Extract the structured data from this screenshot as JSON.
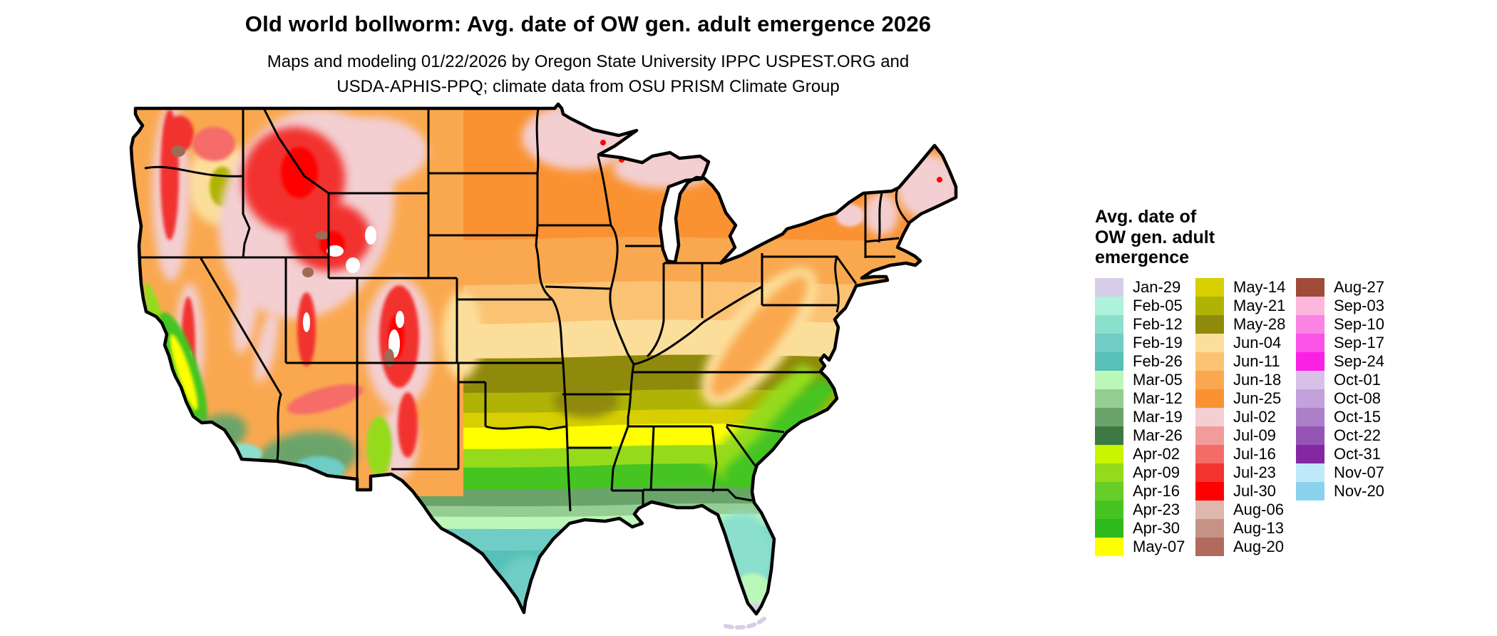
{
  "title": "Old world bollworm: Avg. date of OW gen. adult emergence 2026",
  "subtitle_line1": "Maps and modeling 01/22/2026 by Oregon State University IPPC USPEST.ORG and",
  "subtitle_line2": "USDA-APHIS-PPQ; climate data from OSU PRISM Climate Group",
  "legend": {
    "title_lines": "Avg. date of\nOW gen. adult\nemergence",
    "columns": [
      [
        {
          "label": "Jan-29",
          "color": "#D7CDE8"
        },
        {
          "label": "Feb-05",
          "color": "#ADF2DB"
        },
        {
          "label": "Feb-12",
          "color": "#8ADFCD"
        },
        {
          "label": "Feb-19",
          "color": "#6FCDC5"
        },
        {
          "label": "Feb-26",
          "color": "#56C0B9"
        },
        {
          "label": "Mar-05",
          "color": "#BCF7BA"
        },
        {
          "label": "Mar-12",
          "color": "#95CD93"
        },
        {
          "label": "Mar-19",
          "color": "#6AA46A"
        },
        {
          "label": "Mar-26",
          "color": "#3D7A43"
        },
        {
          "label": "Apr-02",
          "color": "#C9F500"
        },
        {
          "label": "Apr-09",
          "color": "#95DB1B"
        },
        {
          "label": "Apr-16",
          "color": "#67CD28"
        },
        {
          "label": "Apr-23",
          "color": "#45C422"
        },
        {
          "label": "Apr-30",
          "color": "#2EB91E"
        },
        {
          "label": "May-07",
          "color": "#FFFF00"
        }
      ],
      [
        {
          "label": "May-14",
          "color": "#D7CF00"
        },
        {
          "label": "May-21",
          "color": "#AFB306"
        },
        {
          "label": "May-28",
          "color": "#8F8A0B"
        },
        {
          "label": "Jun-04",
          "color": "#FCDE9B"
        },
        {
          "label": "Jun-11",
          "color": "#FCC273"
        },
        {
          "label": "Jun-18",
          "color": "#FAA84F"
        },
        {
          "label": "Jun-25",
          "color": "#FA9232"
        },
        {
          "label": "Jul-02",
          "color": "#F3CFD2"
        },
        {
          "label": "Jul-09",
          "color": "#F29B9B"
        },
        {
          "label": "Jul-16",
          "color": "#F56C67"
        },
        {
          "label": "Jul-23",
          "color": "#F2332F"
        },
        {
          "label": "Jul-30",
          "color": "#FE0000"
        },
        {
          "label": "Aug-06",
          "color": "#DEB7AD"
        },
        {
          "label": "Aug-13",
          "color": "#C69286"
        },
        {
          "label": "Aug-20",
          "color": "#B06B5D"
        }
      ],
      [
        {
          "label": "Aug-27",
          "color": "#9E4B39"
        },
        {
          "label": "Sep-03",
          "color": "#FDB6DC"
        },
        {
          "label": "Sep-10",
          "color": "#FB83E3"
        },
        {
          "label": "Sep-17",
          "color": "#FB52E8"
        },
        {
          "label": "Sep-24",
          "color": "#FB20E4"
        },
        {
          "label": "Oct-01",
          "color": "#D9C0E8"
        },
        {
          "label": "Oct-08",
          "color": "#C3A1DB"
        },
        {
          "label": "Oct-15",
          "color": "#AC80C8"
        },
        {
          "label": "Oct-22",
          "color": "#9455B5"
        },
        {
          "label": "Oct-31",
          "color": "#8427A2"
        },
        {
          "label": "Nov-07",
          "color": "#BFE9FB"
        },
        {
          "label": "Nov-20",
          "color": "#8BD2EE"
        }
      ]
    ]
  },
  "map": {
    "region": "Continental United States",
    "colors": {
      "orange_deep": "#FA9232",
      "orange": "#FAA84F",
      "orange_light": "#FCC273",
      "cream": "#FCDE9B",
      "olive": "#8F8A0B",
      "olive_light": "#AFB306",
      "yellow_olive": "#D7CF00",
      "yellow": "#FFFF00",
      "chartreuse": "#95DB1B",
      "green": "#45C422",
      "green_deep": "#2EB91E",
      "sage": "#6AA46A",
      "sage_dark": "#3D7A43",
      "pale_green": "#95CD93",
      "mint": "#BCF7BA",
      "aqua": "#8ADFCD",
      "teal": "#6FCDC5",
      "teal_deep": "#56C0B9",
      "pink": "#F3CFD2",
      "salmon": "#F29B9B",
      "coral": "#F56C67",
      "red": "#F2332F",
      "red_deep": "#FE0000",
      "peak_white": "#FFFFFF",
      "brown": "#9E6B55",
      "lavender": "#D7CDE8",
      "border": "#000000"
    }
  }
}
